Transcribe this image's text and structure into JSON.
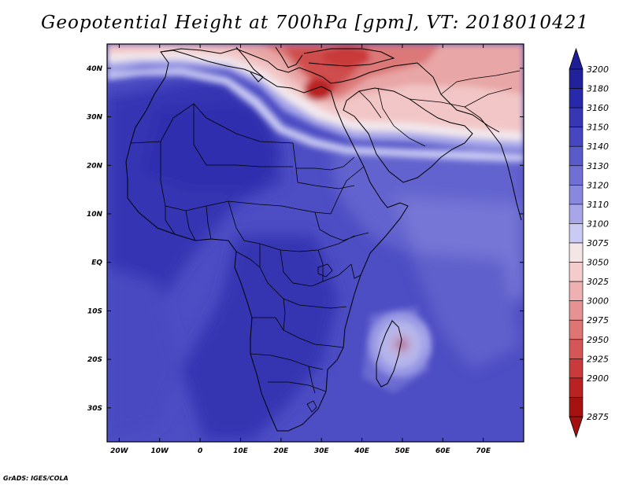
{
  "title": "Geopotential Height at 700hPa [gpm], VT: 2018010421",
  "credit": "GrADS: IGES/COLA",
  "map": {
    "variable": "Geopotential Height",
    "level": "700hPa",
    "units": "gpm",
    "valid_time": "2018010421",
    "lon_range": [
      -23,
      80
    ],
    "lat_range": [
      -37,
      45
    ],
    "lon_ticks": [
      {
        "lon": -20,
        "label": "20W"
      },
      {
        "lon": -10,
        "label": "10W"
      },
      {
        "lon": 0,
        "label": "0"
      },
      {
        "lon": 10,
        "label": "10E"
      },
      {
        "lon": 20,
        "label": "20E"
      },
      {
        "lon": 30,
        "label": "30E"
      },
      {
        "lon": 40,
        "label": "40E"
      },
      {
        "lon": 50,
        "label": "50E"
      },
      {
        "lon": 60,
        "label": "60E"
      },
      {
        "lon": 70,
        "label": "70E"
      }
    ],
    "lat_ticks": [
      {
        "lat": 40,
        "label": "40N"
      },
      {
        "lat": 30,
        "label": "30N"
      },
      {
        "lat": 20,
        "label": "20N"
      },
      {
        "lat": 10,
        "label": "10N"
      },
      {
        "lat": 0,
        "label": "EQ"
      },
      {
        "lat": -10,
        "label": "10S"
      },
      {
        "lat": -20,
        "label": "20S"
      },
      {
        "lat": -30,
        "label": "30S"
      }
    ]
  },
  "colorbar": {
    "labels": [
      "3200",
      "3180",
      "3160",
      "3150",
      "3140",
      "3130",
      "3120",
      "3110",
      "3100",
      "3075",
      "3050",
      "3025",
      "3000",
      "2975",
      "2950",
      "2925",
      "2900",
      "2875"
    ],
    "colors": [
      "#21219c",
      "#2828aa",
      "#3737b4",
      "#4646bf",
      "#5a5ac9",
      "#7070d4",
      "#8888df",
      "#a6a6e9",
      "#cacaf4",
      "#f4e6e6",
      "#f4cccc",
      "#eeb0b0",
      "#e69292",
      "#de7474",
      "#d45656",
      "#c93a3a",
      "#b82222",
      "#a51212"
    ],
    "top_arrow_color": "#1e1e99",
    "bottom_arrow_color": "#a31010"
  }
}
